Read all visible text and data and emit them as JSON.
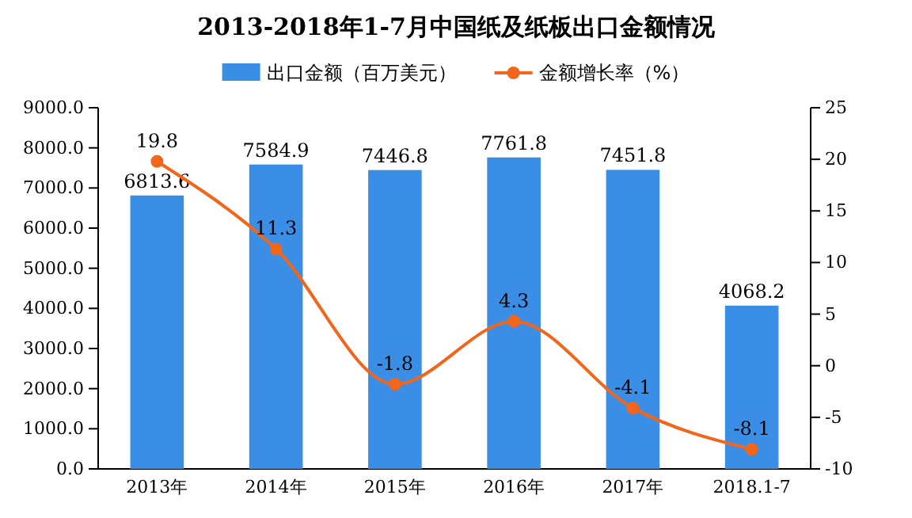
{
  "chart_data": {
    "type": "bar",
    "title": "2013-2018年1-7月中国纸及纸板出口金额情况",
    "categories": [
      "2013年",
      "2014年",
      "2015年",
      "2016年",
      "2017年",
      "2018.1-7"
    ],
    "series": [
      {
        "name": "出口金额（百万美元）",
        "color": "#3a8ee6",
        "values": [
          6813.6,
          7584.9,
          7446.8,
          7761.8,
          7451.8,
          4068.2
        ]
      },
      {
        "name": "金额增长率（%）",
        "type": "line",
        "axis": "y2",
        "color": "#f2661c",
        "values": [
          19.8,
          11.3,
          -1.8,
          4.3,
          -4.1,
          -8.1
        ]
      }
    ],
    "ylim": [
      0,
      9000
    ],
    "yticks": [
      {
        "value": 0,
        "label": "0.0"
      },
      {
        "value": 1000,
        "label": "1000.0"
      },
      {
        "value": 2000,
        "label": "2000.0"
      },
      {
        "value": 3000,
        "label": "3000.0"
      },
      {
        "value": 4000,
        "label": "4000.0"
      },
      {
        "value": 5000,
        "label": "5000.0"
      },
      {
        "value": 6000,
        "label": "6000.0"
      },
      {
        "value": 7000,
        "label": "7000.0"
      },
      {
        "value": 8000,
        "label": "8000.0"
      },
      {
        "value": 9000,
        "label": "9000.0"
      }
    ],
    "y2lim": [
      -10,
      25
    ],
    "y2ticks": [
      -10,
      -5,
      0,
      5,
      10,
      15,
      20,
      25
    ],
    "data_labels": true,
    "legend": "top",
    "marker": "circle",
    "grid": false
  }
}
